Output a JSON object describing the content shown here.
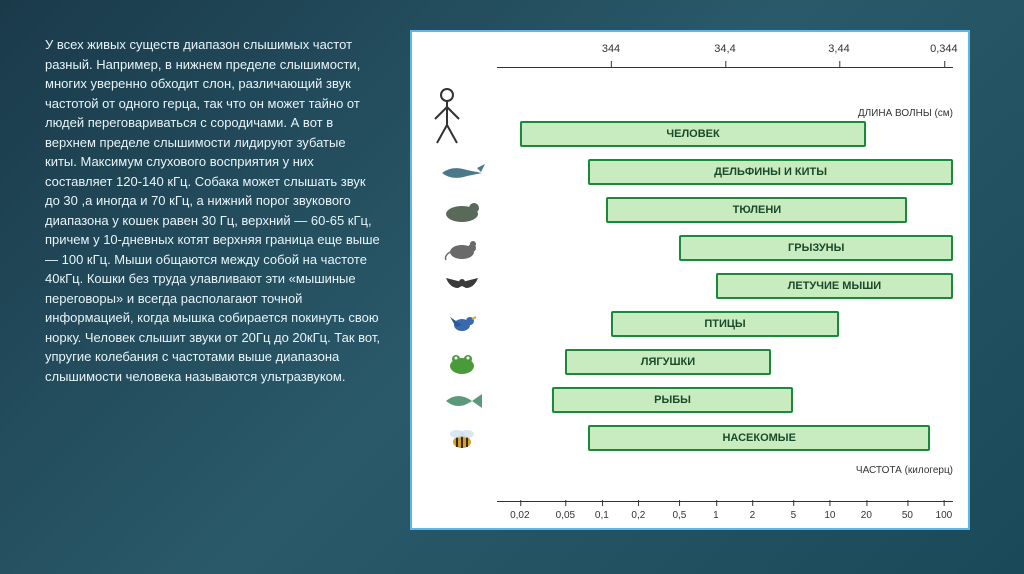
{
  "text_panel": {
    "body": "У всех живых существ диапазон слышимых частот разный. Например, в нижнем пределе слышимости, многих уверенно обходит слон, различающий звук частотой от одного герца, так что он может тайно от людей переговариваться с сородичами. А вот в верхнем пределе слышимости лидируют зубатые киты. Максимум слухового восприятия у них составляет 120-140 кГц. Собака может слышать звук до 30 ,а иногда и 70 кГц, а нижний порог звукового диапазона у кошек равен 30 Гц, верхний — 60-65 кГц, причем у 10-дневных котят верхняя граница еще выше — 100 кГц. Мыши общаются между собой на частоте 40кГц. Кошки без труда улавливают эти «мышиные переговоры» и всегда располагают точной информацией, когда мышка собирается покинуть свою норку. Человек слышит звуки от 20Гц до 20кГц. Так вот, упругие колебания с частотами выше диапазона слышимости человека называются ультразвуком.",
    "font_size": 13,
    "color": "#e8f4f8"
  },
  "chart": {
    "type": "range-bar",
    "background": "#ffffff",
    "border_color": "#5db8e8",
    "bar_fill": "#c8ecc0",
    "bar_border": "#1a8a3a",
    "top_axis": {
      "label": "ДЛИНА ВОЛНЫ (см)",
      "ticks": [
        {
          "pos_pct": 25,
          "label": "344"
        },
        {
          "pos_pct": 50,
          "label": "34,4"
        },
        {
          "pos_pct": 75,
          "label": "3,44"
        },
        {
          "pos_pct": 98,
          "label": "0,344"
        }
      ]
    },
    "bottom_axis": {
      "label": "ЧАСТОТА (килогерц)",
      "ticks": [
        {
          "pos_pct": 5,
          "label": "0,02"
        },
        {
          "pos_pct": 15,
          "label": "0,05"
        },
        {
          "pos_pct": 23,
          "label": "0,1"
        },
        {
          "pos_pct": 31,
          "label": "0,2"
        },
        {
          "pos_pct": 40,
          "label": "0,5"
        },
        {
          "pos_pct": 48,
          "label": "1"
        },
        {
          "pos_pct": 56,
          "label": "2"
        },
        {
          "pos_pct": 65,
          "label": "5"
        },
        {
          "pos_pct": 73,
          "label": "10"
        },
        {
          "pos_pct": 81,
          "label": "20"
        },
        {
          "pos_pct": 90,
          "label": "50"
        },
        {
          "pos_pct": 98,
          "label": "100"
        }
      ]
    },
    "series": [
      {
        "label": "ЧЕЛОВЕК",
        "icon": "human",
        "start_pct": 5,
        "end_pct": 81
      },
      {
        "label": "ДЕЛЬФИНЫ И КИТЫ",
        "icon": "dolphin",
        "start_pct": 20,
        "end_pct": 100
      },
      {
        "label": "ТЮЛЕНИ",
        "icon": "seal",
        "start_pct": 24,
        "end_pct": 90
      },
      {
        "label": "ГРЫЗУНЫ",
        "icon": "rodent",
        "start_pct": 40,
        "end_pct": 100
      },
      {
        "label": "ЛЕТУЧИЕ МЫШИ",
        "icon": "bat",
        "start_pct": 48,
        "end_pct": 100
      },
      {
        "label": "ПТИЦЫ",
        "icon": "bird",
        "start_pct": 25,
        "end_pct": 75
      },
      {
        "label": "ЛЯГУШКИ",
        "icon": "frog",
        "start_pct": 15,
        "end_pct": 60
      },
      {
        "label": "РЫБЫ",
        "icon": "fish",
        "start_pct": 12,
        "end_pct": 65
      },
      {
        "label": "НАСЕКОМЫЕ",
        "icon": "bee",
        "start_pct": 20,
        "end_pct": 95
      }
    ]
  }
}
